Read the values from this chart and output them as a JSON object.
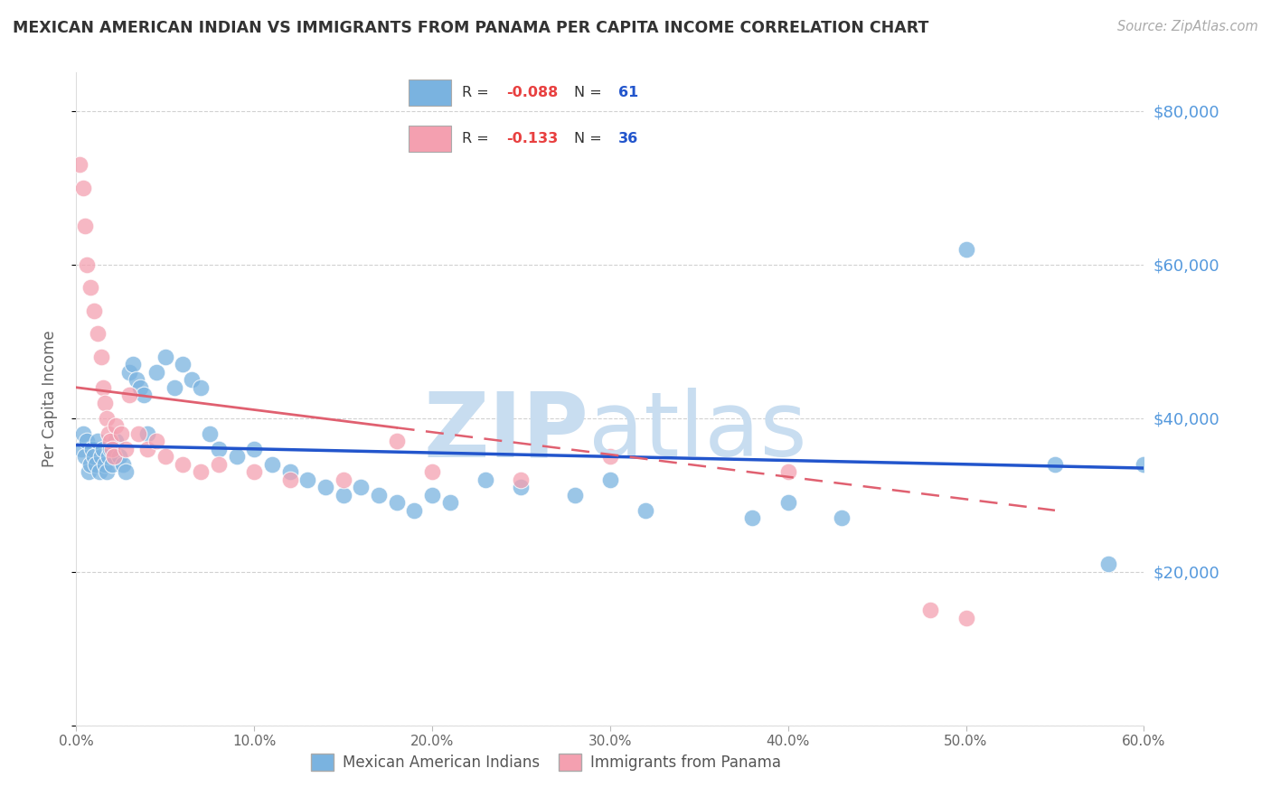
{
  "title": "MEXICAN AMERICAN INDIAN VS IMMIGRANTS FROM PANAMA PER CAPITA INCOME CORRELATION CHART",
  "source": "Source: ZipAtlas.com",
  "ylabel": "Per Capita Income",
  "xlim": [
    0.0,
    60.0
  ],
  "ylim": [
    0,
    85000
  ],
  "blue_color": "#7ab3e0",
  "pink_color": "#f4a0b0",
  "blue_line_color": "#2255cc",
  "pink_line_color": "#e06070",
  "grid_color": "#cccccc",
  "ytick_color": "#5599dd",
  "title_color": "#333333",
  "watermark_zip_color": "#c8ddf0",
  "watermark_atlas_color": "#c8ddf0",
  "blue_x": [
    0.3,
    0.4,
    0.5,
    0.6,
    0.7,
    0.8,
    0.9,
    1.0,
    1.1,
    1.2,
    1.3,
    1.4,
    1.5,
    1.6,
    1.7,
    1.8,
    1.9,
    2.0,
    2.2,
    2.4,
    2.6,
    2.8,
    3.0,
    3.2,
    3.4,
    3.6,
    3.8,
    4.0,
    4.5,
    5.0,
    5.5,
    6.0,
    6.5,
    7.0,
    7.5,
    8.0,
    9.0,
    10.0,
    11.0,
    12.0,
    13.0,
    14.0,
    15.0,
    16.0,
    17.0,
    18.0,
    19.0,
    20.0,
    21.0,
    23.0,
    25.0,
    28.0,
    30.0,
    32.0,
    38.0,
    40.0,
    43.0,
    50.0,
    55.0,
    58.0,
    60.0
  ],
  "blue_y": [
    36000,
    38000,
    35000,
    37000,
    33000,
    34000,
    36000,
    35000,
    34000,
    37000,
    33000,
    35000,
    36000,
    34000,
    33000,
    35000,
    36000,
    34000,
    37000,
    35000,
    34000,
    33000,
    46000,
    47000,
    45000,
    44000,
    43000,
    38000,
    46000,
    48000,
    44000,
    47000,
    45000,
    44000,
    38000,
    36000,
    35000,
    36000,
    34000,
    33000,
    32000,
    31000,
    30000,
    31000,
    30000,
    29000,
    28000,
    30000,
    29000,
    32000,
    31000,
    30000,
    32000,
    28000,
    27000,
    29000,
    27000,
    62000,
    34000,
    21000,
    34000
  ],
  "pink_x": [
    0.2,
    0.4,
    0.5,
    0.6,
    0.8,
    1.0,
    1.2,
    1.4,
    1.5,
    1.6,
    1.7,
    1.8,
    1.9,
    2.0,
    2.1,
    2.2,
    2.5,
    2.8,
    3.0,
    3.5,
    4.0,
    4.5,
    5.0,
    6.0,
    7.0,
    8.0,
    10.0,
    12.0,
    15.0,
    18.0,
    20.0,
    25.0,
    30.0,
    40.0,
    48.0,
    50.0
  ],
  "pink_y": [
    73000,
    70000,
    65000,
    60000,
    57000,
    54000,
    51000,
    48000,
    44000,
    42000,
    40000,
    38000,
    37000,
    36000,
    35000,
    39000,
    38000,
    36000,
    43000,
    38000,
    36000,
    37000,
    35000,
    34000,
    33000,
    34000,
    33000,
    32000,
    32000,
    37000,
    33000,
    32000,
    35000,
    33000,
    15000,
    14000
  ],
  "blue_line_x0": 0,
  "blue_line_x1": 60,
  "blue_line_y0": 36500,
  "blue_line_y1": 33500,
  "pink_line_x0": 0,
  "pink_line_x1": 55,
  "pink_line_y0": 44000,
  "pink_line_y1": 28000,
  "pink_solid_end_x": 18,
  "legend_R_blue": "R =  -0.088",
  "legend_N_blue": "N =  61",
  "legend_R_pink": "R =  -0.133",
  "legend_N_pink": "N =  36",
  "bottom_label_blue": "Mexican American Indians",
  "bottom_label_pink": "Immigrants from Panama"
}
